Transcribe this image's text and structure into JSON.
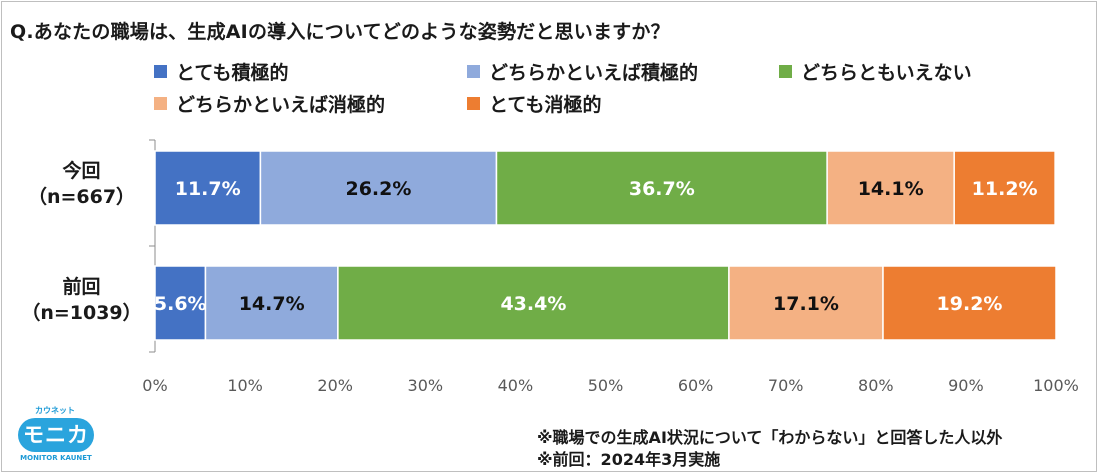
{
  "title": "Q.あなたの職場は、生成AIの導入についてどのような姿勢だと思いますか？",
  "notes": [
    "※職場での生成AI状況について「わからない」と回答した人以外",
    "※前回：2024年3月実施"
  ],
  "logo": {
    "top_text": "カウネット",
    "main_text": "モニカ",
    "bottom_text": "MONITOR KAUNET"
  },
  "colors": {
    "very_positive": "#4472c4",
    "somewhat_positive": "#8faadc",
    "neutral": "#70ad47",
    "somewhat_negative": "#f4b183",
    "very_negative": "#ed7d31"
  },
  "chart_data": {
    "type": "bar",
    "orientation": "horizontal",
    "stacked": true,
    "unit": "%",
    "xlim": [
      0,
      100
    ],
    "ticks": [
      "0%",
      "10%",
      "20%",
      "30%",
      "40%",
      "50%",
      "60%",
      "70%",
      "80%",
      "90%",
      "100%"
    ],
    "legend_position": "top",
    "categories": [
      {
        "label": "今回",
        "sublabel": "（n=667）"
      },
      {
        "label": "前回",
        "sublabel": "（n=1039）"
      }
    ],
    "series": [
      {
        "name": "とても積極的",
        "color": "#4472c4",
        "label_color": "#ffffff",
        "values": [
          11.7,
          5.6
        ],
        "labels": [
          "11.7%",
          "5.6%"
        ]
      },
      {
        "name": "どちらかといえば積極的",
        "color": "#8faadc",
        "label_color": "#111111",
        "values": [
          26.2,
          14.7
        ],
        "labels": [
          "26.2%",
          "14.7%"
        ]
      },
      {
        "name": "どちらともいえない",
        "color": "#70ad47",
        "label_color": "#ffffff",
        "values": [
          36.7,
          43.4
        ],
        "labels": [
          "36.7%",
          "43.4%"
        ]
      },
      {
        "name": "どちらかといえば消極的",
        "color": "#f4b183",
        "label_color": "#111111",
        "values": [
          14.1,
          17.1
        ],
        "labels": [
          "14.1%",
          "17.1%"
        ]
      },
      {
        "name": "とても消極的",
        "color": "#ed7d31",
        "label_color": "#ffffff",
        "values": [
          11.2,
          19.2
        ],
        "labels": [
          "11.2%",
          "19.2%"
        ]
      }
    ]
  }
}
